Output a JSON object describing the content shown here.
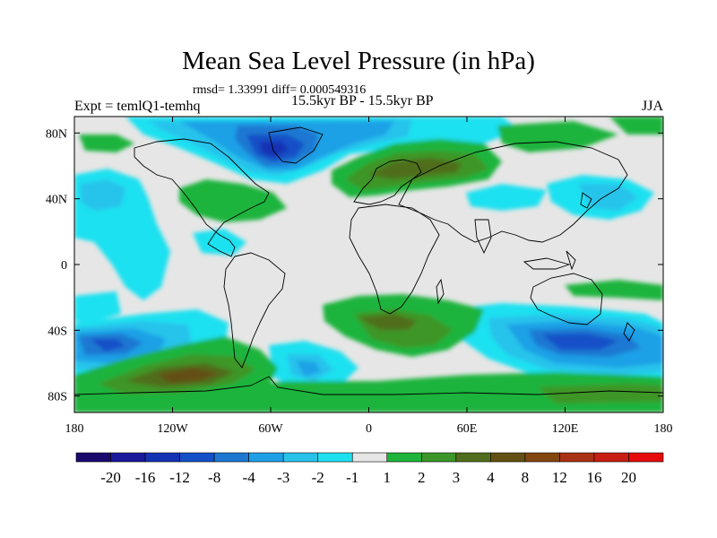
{
  "title": "Mean Sea Level Pressure (in hPa)",
  "stats_line": "rmsd= 1.33991 diff= 0.000549316",
  "experiment": "Expt = temlQ1-temhq",
  "period": "15.5kyr BP - 15.5kyr BP",
  "season": "JJA",
  "axes": {
    "lon_labels": [
      "180",
      "120W",
      "60W",
      "0",
      "60E",
      "120E",
      "180"
    ],
    "lat_labels": [
      "80N",
      "40N",
      "0",
      "40S",
      "80S"
    ]
  },
  "colorbar": {
    "labels": [
      "-20",
      "-16",
      "-12",
      "-8",
      "-4",
      "-3",
      "-2",
      "-1",
      "1",
      "2",
      "3",
      "4",
      "8",
      "12",
      "16",
      "20"
    ],
    "colors": [
      "#1a0a6e",
      "#1a1a9a",
      "#1432b4",
      "#1450c8",
      "#1e78d2",
      "#1ea0e6",
      "#28c3eb",
      "#1ee1f0",
      "#e6e6e6",
      "#1eb43c",
      "#3c9628",
      "#506e1e",
      "#645014",
      "#82460f",
      "#aa3214",
      "#c81e14",
      "#e60a0a"
    ]
  },
  "chart_data": {
    "type": "heatmap",
    "title": "Mean Sea Level Pressure (in hPa)",
    "x_range": [
      -180,
      180
    ],
    "y_range": [
      -90,
      90
    ],
    "x_ticks": [
      -180,
      -120,
      -60,
      0,
      60,
      120,
      180
    ],
    "y_ticks": [
      80,
      40,
      0,
      -40,
      -80
    ],
    "levels": [
      -20,
      -16,
      -12,
      -8,
      -4,
      -3,
      -2,
      -1,
      1,
      2,
      3,
      4,
      8,
      12,
      16,
      20
    ],
    "features": [
      {
        "region": "Greenland / Canadian Arctic",
        "value_range": [
          -8,
          -2
        ]
      },
      {
        "region": "Scandinavia / Northern Europe",
        "value_range": [
          2,
          4
        ]
      },
      {
        "region": "Southern Pacific (~60S, 150W-90W)",
        "value_range": [
          4,
          8
        ]
      },
      {
        "region": "Southern Indian Ocean (~45S, 30E-60E)",
        "value_range": [
          2,
          4
        ]
      },
      {
        "region": "Southern Pacific (~50S, 180-150W)",
        "value_range": [
          -8,
          -2
        ]
      },
      {
        "region": "Southern Ocean (~50S, 100E-180)",
        "value_range": [
          -8,
          -2
        ]
      }
    ]
  }
}
